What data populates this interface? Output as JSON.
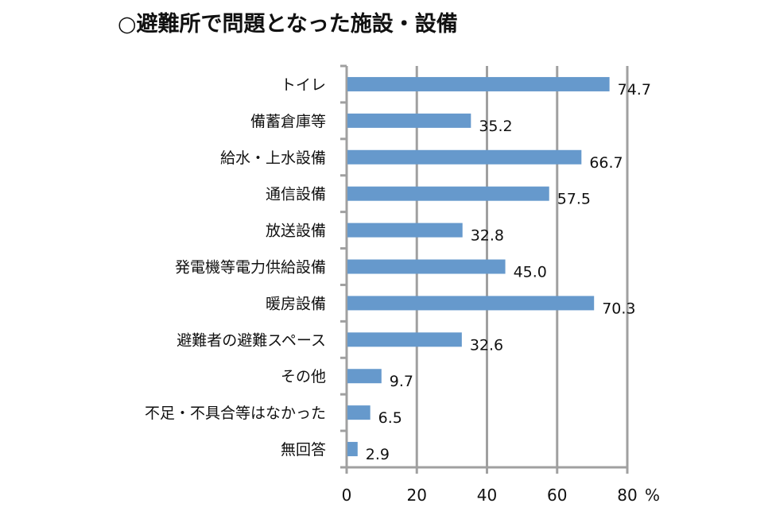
{
  "chart_data": {
    "type": "bar",
    "orientation": "horizontal",
    "title": "○避難所で問題となった施設・設備",
    "categories": [
      "トイレ",
      "備蓄倉庫等",
      "給水・上水設備",
      "通信設備",
      "放送設備",
      "発電機等電力供給設備",
      "暖房設備",
      "避難者の避難スペース",
      "その他",
      "不足・不具合等はなかった",
      "無回答"
    ],
    "values": [
      74.7,
      35.2,
      66.7,
      57.5,
      32.8,
      45.0,
      70.3,
      32.6,
      9.7,
      6.5,
      2.9
    ],
    "value_labels": [
      "74.7",
      "35.2",
      "66.7",
      "57.5",
      "32.8",
      "45.0",
      "70.3",
      "32.6",
      "9.7",
      "6.5",
      "2.9"
    ],
    "xlim": [
      0,
      80
    ],
    "x_ticks": [
      "0",
      "20",
      "40",
      "60",
      "80"
    ],
    "x_unit": "%",
    "grid": true,
    "colors": {
      "bar": "#6699cc",
      "grid": "#a0a0a0"
    }
  }
}
